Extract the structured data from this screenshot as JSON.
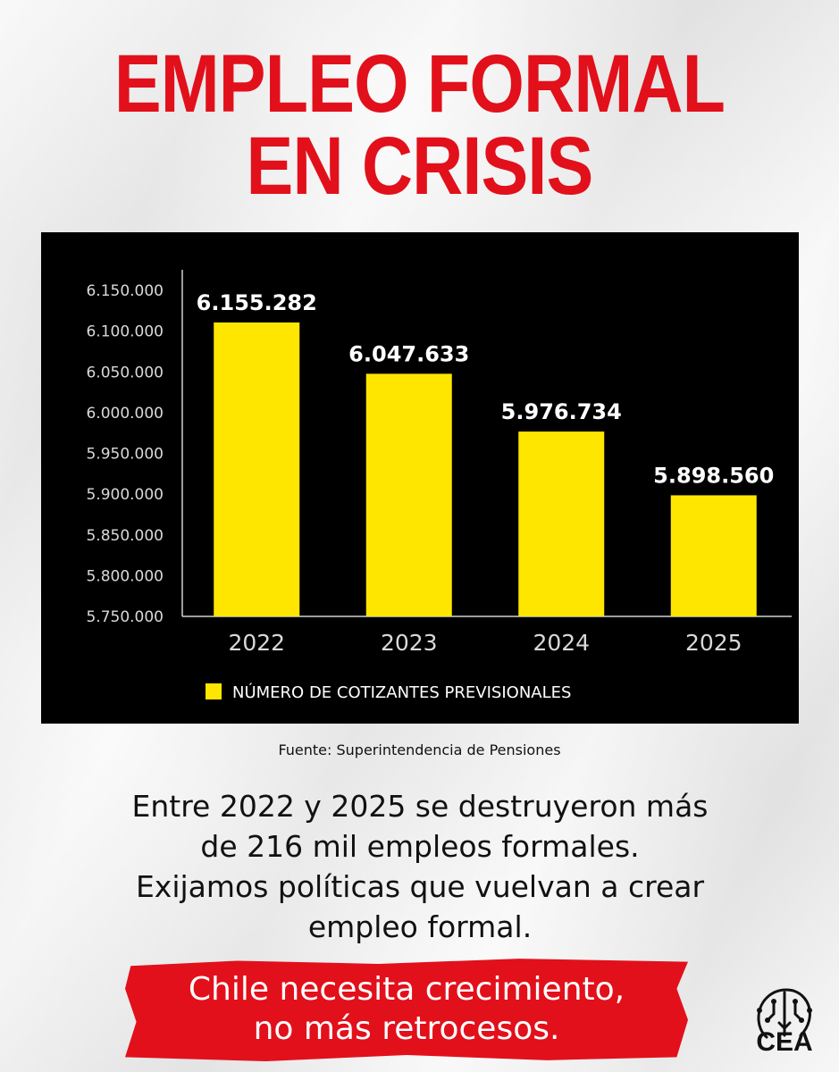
{
  "title": {
    "line1": "EMPLEO FORMAL",
    "line2": "EN CRISIS"
  },
  "chart_data": {
    "type": "bar",
    "categories": [
      "2022",
      "2023",
      "2024",
      "2025"
    ],
    "series": [
      {
        "name": "NÚMERO DE COTIZANTES PREVISIONALES",
        "values": [
          6155282,
          6047633,
          5976734,
          5898560
        ],
        "labels": [
          "6.155.282",
          "6.047.633",
          "5.976.734",
          "5.898.560"
        ]
      }
    ],
    "yticks": [
      "6.150.000",
      "6.100.000",
      "6.050.000",
      "6.000.000",
      "5.950.000",
      "5.900.000",
      "5.850.000",
      "5.800.000",
      "5.750.000"
    ],
    "ylim": [
      5750000,
      6150000
    ],
    "legend_position": "bottom",
    "colors": {
      "bar": "#ffe600",
      "background": "#000000",
      "text": "#ffffff",
      "tick": "#d9d9d9"
    }
  },
  "source": "Fuente: Superintendencia de Pensiones",
  "message": [
    "Entre 2022 y 2025 se destruyeron más",
    "de 216 mil empleos formales.",
    "Exijamos políticas que vuelvan a crear",
    "empleo formal."
  ],
  "banner": {
    "line1": "Chile necesita crecimiento,",
    "line2": "no más retrocesos."
  },
  "logo": {
    "text": "CEA",
    "icon": "head-circuit-icon"
  }
}
